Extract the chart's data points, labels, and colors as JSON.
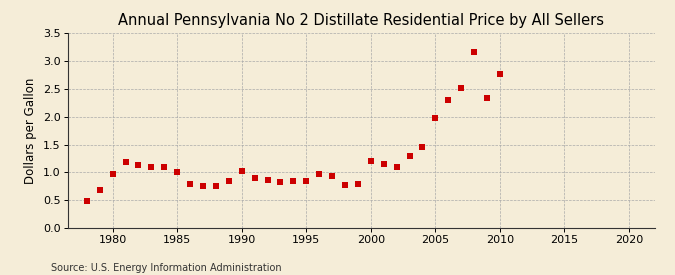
{
  "title": "Annual Pennsylvania No 2 Distillate Residential Price by All Sellers",
  "ylabel": "Dollars per Gallon",
  "source": "Source: U.S. Energy Information Administration",
  "years": [
    1978,
    1979,
    1980,
    1981,
    1982,
    1983,
    1984,
    1985,
    1986,
    1987,
    1988,
    1989,
    1990,
    1991,
    1992,
    1993,
    1994,
    1995,
    1996,
    1997,
    1998,
    1999,
    2000,
    2001,
    2002,
    2003,
    2004,
    2005,
    2006,
    2007,
    2008,
    2009,
    2010
  ],
  "values": [
    0.48,
    0.68,
    0.97,
    1.18,
    1.13,
    1.09,
    1.09,
    1.01,
    0.8,
    0.76,
    0.76,
    0.84,
    1.02,
    0.9,
    0.87,
    0.83,
    0.84,
    0.84,
    0.97,
    0.93,
    0.78,
    0.79,
    1.2,
    1.15,
    1.09,
    1.29,
    1.46,
    1.98,
    2.3,
    2.51,
    3.16,
    2.34,
    2.77
  ],
  "marker_color": "#CC0000",
  "marker": "s",
  "marker_size": 14,
  "background_color": "#F5EDD8",
  "grid_color": "#AAAAAA",
  "xlim": [
    1976.5,
    2022
  ],
  "ylim": [
    0.0,
    3.5
  ],
  "xticks": [
    1980,
    1985,
    1990,
    1995,
    2000,
    2005,
    2010,
    2015,
    2020
  ],
  "yticks": [
    0.0,
    0.5,
    1.0,
    1.5,
    2.0,
    2.5,
    3.0,
    3.5
  ],
  "title_fontsize": 10.5,
  "ylabel_fontsize": 8.5,
  "tick_fontsize": 8,
  "source_fontsize": 7
}
